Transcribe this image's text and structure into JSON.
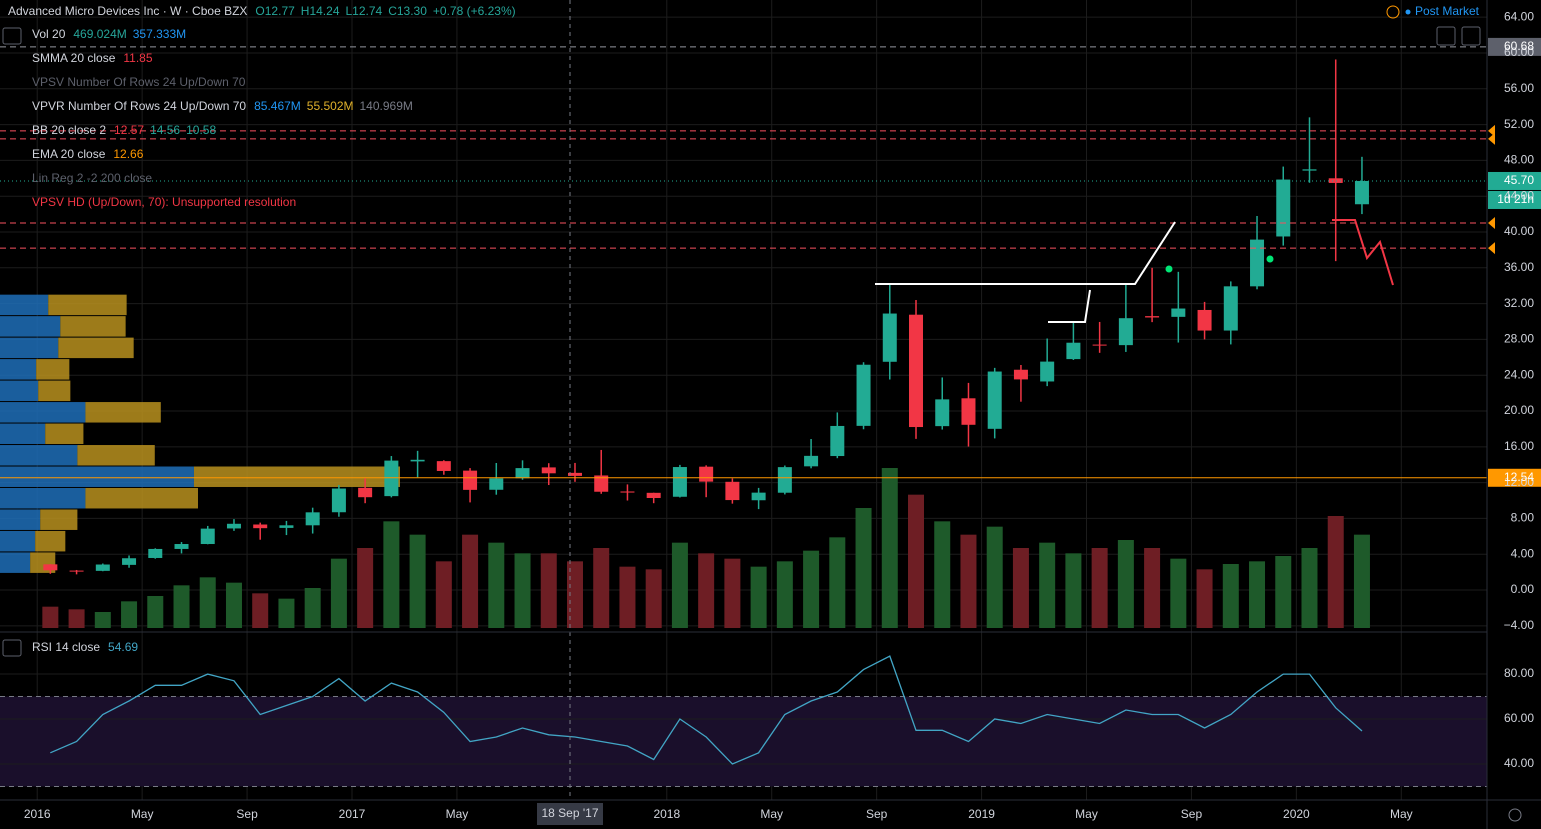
{
  "header": {
    "symbol": "Advanced Micro Devices Inc · W · Cboe BZX",
    "quote": [
      {
        "text": "O12.77",
        "color": "#26a69a"
      },
      {
        "text": "H14.24",
        "color": "#26a69a"
      },
      {
        "text": "L12.74",
        "color": "#26a69a"
      },
      {
        "text": "C13.30",
        "color": "#26a69a"
      },
      {
        "text": "+0.78 (+6.23%)",
        "color": "#26a69a"
      }
    ],
    "session": "Post Market",
    "crosshair_date": "18 Sep '17"
  },
  "legends": [
    {
      "name": "Vol 20",
      "color": "#d1d4dc",
      "values": [
        {
          "text": "469.024M",
          "color": "#26a69a"
        },
        {
          "text": "357.333M",
          "color": "#2196f3"
        }
      ]
    },
    {
      "name": "SMMA 20 close",
      "color": "#d1d4dc",
      "values": [
        {
          "text": "11.85",
          "color": "#f23645"
        }
      ]
    },
    {
      "name": "VPSV Number Of Rows 24 Up/Down 70",
      "color": "#5d606b",
      "values": []
    },
    {
      "name": "VPVR Number Of Rows 24 Up/Down 70",
      "color": "#d1d4dc",
      "values": [
        {
          "text": "85.467M",
          "color": "#2196f3"
        },
        {
          "text": "55.502M",
          "color": "#e0b12c"
        },
        {
          "text": "140.969M",
          "color": "#787b86"
        }
      ]
    },
    {
      "name": "BB 20 close 2",
      "color": "#d1d4dc",
      "values": [
        {
          "text": "12.57",
          "color": "#f23645"
        },
        {
          "text": "14.56",
          "color": "#26a69a"
        },
        {
          "text": "10.58",
          "color": "#26a69a"
        }
      ]
    },
    {
      "name": "EMA 20 close",
      "color": "#d1d4dc",
      "values": [
        {
          "text": "12.66",
          "color": "#ff9800"
        }
      ]
    },
    {
      "name": "Lin Reg 2 -2 200 close",
      "color": "#5d606b",
      "values": []
    },
    {
      "name": "VPSV HD (Up/Down, 70): Unsupported resolution",
      "color": "#f23645",
      "values": []
    }
  ],
  "chart_data": [
    {
      "type": "candlestick",
      "x": [
        "2016-01",
        "2016-02",
        "2016-03",
        "2016-04",
        "2016-05",
        "2016-06",
        "2016-07",
        "2016-08",
        "2016-09",
        "2016-10",
        "2016-11",
        "2016-12",
        "2017-01",
        "2017-02",
        "2017-03",
        "2017-04",
        "2017-05",
        "2017-06",
        "2017-07",
        "2017-08",
        "2017-09",
        "2017-10",
        "2017-11",
        "2017-12",
        "2018-01",
        "2018-02",
        "2018-03",
        "2018-04",
        "2018-05",
        "2018-06",
        "2018-07",
        "2018-08",
        "2018-09",
        "2018-10",
        "2018-11",
        "2018-12",
        "2019-01",
        "2019-02",
        "2019-03",
        "2019-04",
        "2019-05",
        "2019-06",
        "2019-07",
        "2019-08",
        "2019-09",
        "2019-10",
        "2019-11",
        "2019-12",
        "2020-01",
        "2020-02",
        "2020-03"
      ],
      "open": [
        2.87,
        2.17,
        2.14,
        2.81,
        3.58,
        4.59,
        5.14,
        6.88,
        7.32,
        6.94,
        7.23,
        8.69,
        11.42,
        10.49,
        14.37,
        14.4,
        13.34,
        11.2,
        12.49,
        13.7,
        13.09,
        12.8,
        11.01,
        10.86,
        10.42,
        13.78,
        12.09,
        10.03,
        10.87,
        13.82,
        14.97,
        18.34,
        25.5,
        30.76,
        18.31,
        21.42,
        18.01,
        24.61,
        23.3,
        25.8,
        27.42,
        27.36,
        30.6,
        30.52,
        31.29,
        28.99,
        33.93,
        39.5,
        46.86,
        46.0,
        43.1
      ],
      "high": [
        2.89,
        2.24,
        2.96,
        3.86,
        4.66,
        5.36,
        7.16,
        7.92,
        7.53,
        7.72,
        9.2,
        11.73,
        12.47,
        14.97,
        15.55,
        14.5,
        13.62,
        14.19,
        14.49,
        14.17,
        14.2,
        15.65,
        11.8,
        10.87,
        13.98,
        13.93,
        12.47,
        11.41,
        13.91,
        16.87,
        19.84,
        25.45,
        34.14,
        32.4,
        23.75,
        23.14,
        24.82,
        25.14,
        28.1,
        29.95,
        29.95,
        34.3,
        36.0,
        35.55,
        32.19,
        34.48,
        41.79,
        47.31,
        52.81,
        59.27,
        48.4
      ],
      "low": [
        1.81,
        1.75,
        2.1,
        2.49,
        3.5,
        4.09,
        5.11,
        6.61,
        5.62,
        6.14,
        6.31,
        8.19,
        9.7,
        10.35,
        12.59,
        12.88,
        9.79,
        10.65,
        12.32,
        11.73,
        12.09,
        10.75,
        10.0,
        9.7,
        10.34,
        10.37,
        9.65,
        9.04,
        10.68,
        13.6,
        14.73,
        17.96,
        23.52,
        16.88,
        17.93,
        16.03,
        16.94,
        21.04,
        22.78,
        25.7,
        26.5,
        26.6,
        29.93,
        27.65,
        28.0,
        27.44,
        33.6,
        38.48,
        45.5,
        36.75,
        42.0
      ],
      "close": [
        2.2,
        2.14,
        2.85,
        3.55,
        4.59,
        5.14,
        6.86,
        7.4,
        6.91,
        7.23,
        8.68,
        11.34,
        10.37,
        14.46,
        14.55,
        13.3,
        11.19,
        12.48,
        13.62,
        13.04,
        12.75,
        10.98,
        10.89,
        10.28,
        13.74,
        12.11,
        10.05,
        10.88,
        13.73,
        14.99,
        18.33,
        25.17,
        30.89,
        18.21,
        21.3,
        18.46,
        24.41,
        23.53,
        25.52,
        27.63,
        27.41,
        30.37,
        30.45,
        31.45,
        28.99,
        33.93,
        39.15,
        45.86,
        47.0,
        45.48,
        45.7
      ],
      "volume": [
        80,
        70,
        60,
        100,
        120,
        160,
        190,
        170,
        130,
        110,
        150,
        260,
        300,
        400,
        350,
        250,
        350,
        320,
        280,
        280,
        250,
        300,
        230,
        220,
        320,
        280,
        260,
        230,
        250,
        290,
        340,
        450,
        600,
        500,
        400,
        350,
        380,
        300,
        320,
        280,
        300,
        330,
        300,
        260,
        220,
        240,
        250,
        270,
        300,
        420,
        350
      ],
      "up_color": "#22ab94",
      "down_color": "#f23645",
      "volume_up_color": "#1e5a2a",
      "volume_down_color": "#6e1e24",
      "xlim": [
        "2015-12",
        "2020-08"
      ],
      "xticks": [
        {
          "value": "2016-01",
          "label": "2016"
        },
        {
          "value": "2016-05",
          "label": "May"
        },
        {
          "value": "2016-09",
          "label": "Sep"
        },
        {
          "value": "2017-01",
          "label": "2017"
        },
        {
          "value": "2017-05",
          "label": "May"
        },
        {
          "value": "2018-01",
          "label": "2018"
        },
        {
          "value": "2018-05",
          "label": "May"
        },
        {
          "value": "2018-09",
          "label": "Sep"
        },
        {
          "value": "2019-01",
          "label": "2019"
        },
        {
          "value": "2019-05",
          "label": "May"
        },
        {
          "value": "2019-09",
          "label": "Sep"
        },
        {
          "value": "2020-01",
          "label": "2020"
        },
        {
          "value": "2020-05",
          "label": "May"
        }
      ],
      "ylim": [
        -4.69,
        65.92
      ],
      "yticks": [
        {
          "value": 64,
          "label": "64.00"
        },
        {
          "value": 60,
          "label": "60.00"
        },
        {
          "value": 56,
          "label": "56.00"
        },
        {
          "value": 52,
          "label": "52.00"
        },
        {
          "value": 48,
          "label": "48.00"
        },
        {
          "value": 44,
          "label": "44.00"
        },
        {
          "value": 40,
          "label": "40.00"
        },
        {
          "value": 36,
          "label": "36.00"
        },
        {
          "value": 32,
          "label": "32.00"
        },
        {
          "value": 28,
          "label": "28.00"
        },
        {
          "value": 24,
          "label": "24.00"
        },
        {
          "value": 20,
          "label": "20.00"
        },
        {
          "value": 16,
          "label": "16.00"
        },
        {
          "value": 12,
          "label": "12.00"
        },
        {
          "value": 8,
          "label": "8.00"
        },
        {
          "value": 4,
          "label": "4.00"
        },
        {
          "value": 0,
          "label": "0.00"
        },
        {
          "value": -4,
          "label": "−4.00"
        }
      ],
      "hlines": [
        {
          "value": 60.68,
          "label": "60.68",
          "color": "#9598a1",
          "style": "dashed",
          "box": "#5d606b"
        },
        {
          "value": 51.3,
          "color": "#f7525f",
          "style": "dashed"
        },
        {
          "value": 50.4,
          "color": "#f7525f",
          "style": "dashed"
        },
        {
          "value": 45.7,
          "label": "45.70",
          "color": "#22ab94",
          "style": "dotted",
          "box": "#22ab94"
        },
        {
          "value": 41.0,
          "color": "#f7525f",
          "style": "dashed"
        },
        {
          "value": 38.2,
          "color": "#f7525f",
          "style": "dashed"
        },
        {
          "value": 12.54,
          "label": "12.54",
          "color": "#ff9800",
          "style": "solid",
          "box": "#ff9800"
        }
      ],
      "countdown": "1d 21h",
      "volume_profile": {
        "price_bins": [
          1.8,
          4.2,
          6.6,
          9.0,
          11.4,
          13.8,
          16.2,
          18.6,
          21.0,
          23.4,
          25.8,
          28.2,
          30.6,
          33.0
        ],
        "up": [
          30,
          35,
          40,
          85,
          193,
          77,
          45,
          85,
          38,
          36,
          58,
          60,
          48
        ],
        "down": [
          25,
          30,
          37,
          112,
          205,
          77,
          38,
          75,
          32,
          33,
          75,
          65,
          78
        ],
        "up_color": "#1e6fb8",
        "down_color": "#b8901e"
      }
    },
    {
      "type": "line",
      "name": "RSI 14 close",
      "value_text": "54.69",
      "color": "#42a5c5",
      "values": [
        45,
        50,
        62,
        68,
        75,
        75,
        80,
        77,
        62,
        66,
        70,
        78,
        68,
        76,
        72,
        63,
        50,
        52,
        56,
        53,
        52,
        50,
        48,
        42,
        60,
        52,
        40,
        45,
        62,
        68,
        72,
        82,
        88,
        55,
        55,
        50,
        60,
        58,
        62,
        60,
        58,
        64,
        62,
        62,
        56,
        62,
        72,
        80,
        80,
        65,
        54.69
      ],
      "ylim": [
        24,
        98.7
      ],
      "yticks": [
        {
          "value": 80,
          "label": "80.00"
        },
        {
          "value": 60,
          "label": "60.00"
        },
        {
          "value": 40,
          "label": "40.00"
        }
      ],
      "band": [
        30,
        70
      ],
      "band_color": "#1a0f2b"
    }
  ]
}
